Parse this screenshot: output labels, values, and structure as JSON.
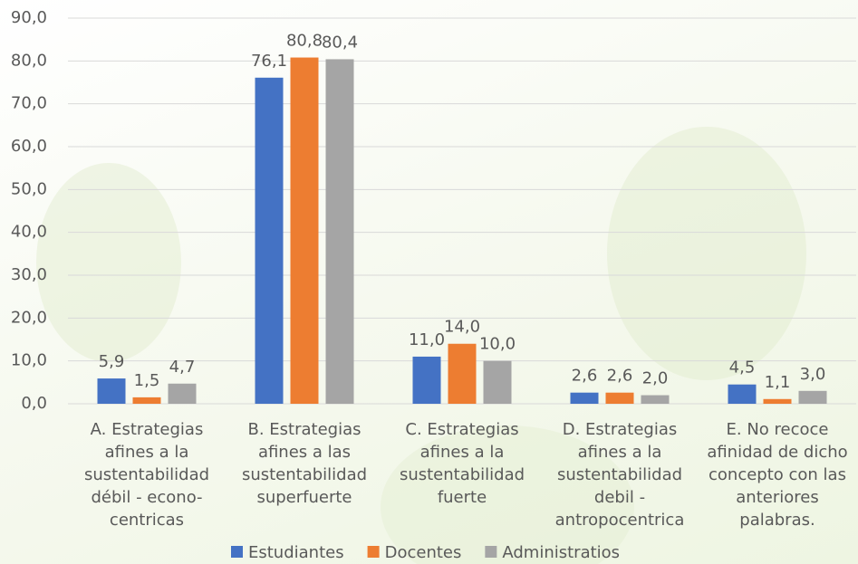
{
  "chart_data": {
    "type": "bar",
    "categories": [
      "A. Estrategias afines a la sustentabilidad débil - econo-centricas",
      "B. Estrategias afines a las sustentabilidad superfuerte",
      "C. Estrategias afines a la sustentabilidad fuerte",
      "D. Estrategias afines a la sustentabilidad debil - antropocentrica",
      "E. No recoce afinidad de dicho concepto con las anteriores palabras."
    ],
    "series": [
      {
        "name": "Estudiantes",
        "color": "#4472c4",
        "values": [
          5.9,
          76.1,
          11.0,
          2.6,
          4.5
        ],
        "value_labels": [
          "5,9",
          "76,1",
          "11,0",
          "2,6",
          "4,5"
        ]
      },
      {
        "name": "Docentes",
        "color": "#ed7d31",
        "values": [
          1.5,
          80.8,
          14.0,
          2.6,
          1.1
        ],
        "value_labels": [
          "1,5",
          "80,8",
          "14,0",
          "2,6",
          "1,1"
        ]
      },
      {
        "name": "Administratios",
        "color": "#a5a5a5",
        "values": [
          4.7,
          80.4,
          10.0,
          2.0,
          3.0
        ],
        "value_labels": [
          "4,7",
          "80,4",
          "10,0",
          "2,0",
          "3,0"
        ]
      }
    ],
    "ylim": [
      0,
      90
    ],
    "yticks": [
      {
        "value": 0,
        "label": "0,0"
      },
      {
        "value": 10,
        "label": "10,0"
      },
      {
        "value": 20,
        "label": "20,0"
      },
      {
        "value": 30,
        "label": "30,0"
      },
      {
        "value": 40,
        "label": "40,0"
      },
      {
        "value": 50,
        "label": "50,0"
      },
      {
        "value": 60,
        "label": "60,0"
      },
      {
        "value": 70,
        "label": "70,0"
      },
      {
        "value": 80,
        "label": "80,0"
      },
      {
        "value": 90,
        "label": "90,0"
      }
    ],
    "grid": true,
    "legend": "bottom"
  }
}
